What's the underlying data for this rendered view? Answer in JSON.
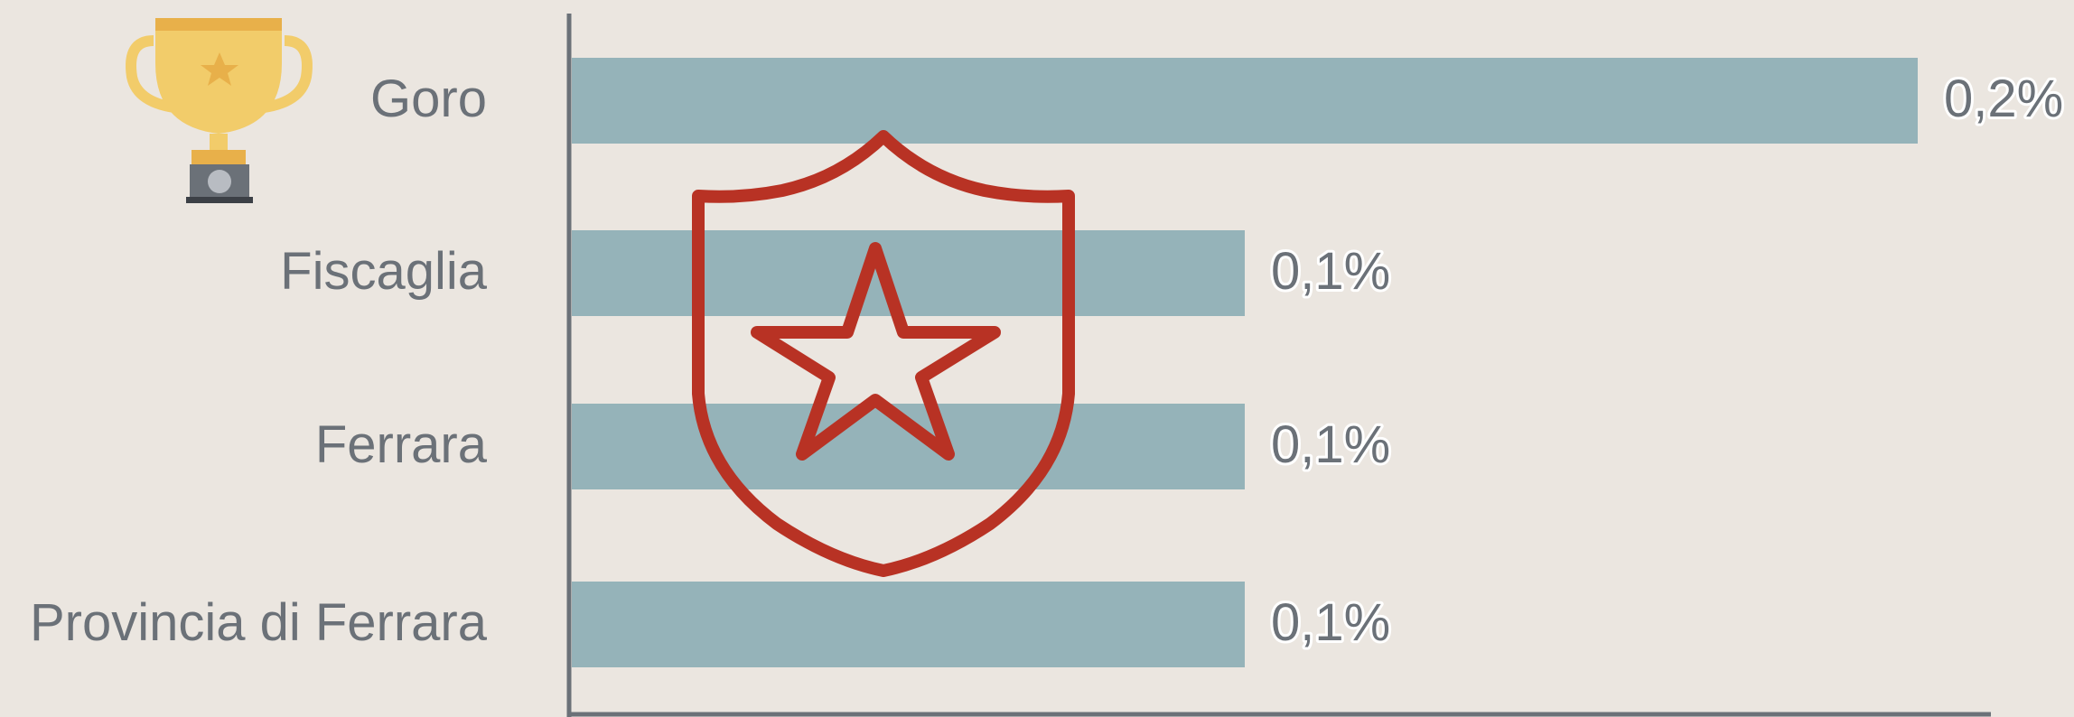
{
  "chart_data": {
    "type": "bar",
    "orientation": "horizontal",
    "categories": [
      "Goro",
      "Fiscaglia",
      "Ferrara",
      "Provincia di Ferrara"
    ],
    "values": [
      0.2,
      0.1,
      0.1,
      0.1
    ],
    "value_labels": [
      "0,2%",
      "0,1%",
      "0,1%",
      "0,1%"
    ],
    "color": "#95b3b9"
  }
}
